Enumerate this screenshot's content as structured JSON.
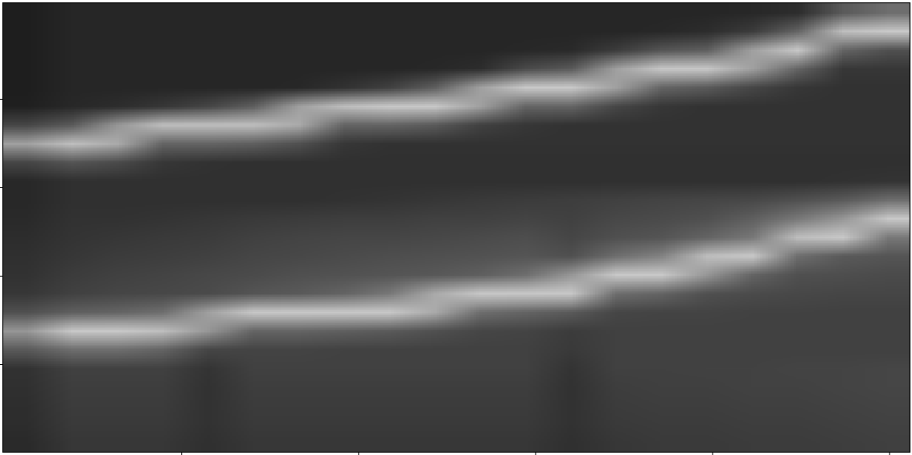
{
  "chart_data": {
    "type": "heatmap",
    "xlim": [
      -2,
      1023
    ],
    "ylim": [
      499,
      -9
    ],
    "xticks": [
      200,
      400,
      600,
      800,
      1000
    ],
    "yticks": [
      100,
      200,
      300,
      400
    ],
    "tick_labels": false,
    "color": "gray",
    "zlim": [
      0,
      255
    ],
    "cells": [
      [
        30,
        38,
        38,
        38,
        38,
        38,
        38,
        38,
        38,
        38,
        38,
        38,
        38,
        38,
        38,
        38,
        40,
        45,
        90,
        110
      ],
      [
        30,
        38,
        38,
        38,
        38,
        38,
        38,
        38,
        38,
        38,
        38,
        38,
        38,
        38,
        40,
        45,
        60,
        100,
        190,
        200
      ],
      [
        30,
        38,
        38,
        38,
        38,
        38,
        38,
        38,
        38,
        38,
        38,
        40,
        42,
        60,
        85,
        95,
        160,
        200,
        100,
        80
      ],
      [
        30,
        38,
        38,
        38,
        38,
        38,
        38,
        38,
        38,
        40,
        45,
        75,
        90,
        160,
        200,
        200,
        160,
        100,
        55,
        55
      ],
      [
        30,
        38,
        38,
        38,
        38,
        38,
        40,
        50,
        65,
        95,
        160,
        200,
        200,
        160,
        100,
        90,
        70,
        55,
        50,
        50
      ],
      [
        32,
        40,
        45,
        55,
        70,
        95,
        160,
        190,
        200,
        200,
        160,
        100,
        100,
        70,
        55,
        50,
        50,
        50,
        50,
        50
      ],
      [
        70,
        90,
        150,
        190,
        190,
        190,
        170,
        100,
        100,
        90,
        65,
        55,
        50,
        50,
        50,
        50,
        50,
        50,
        50,
        50
      ],
      [
        160,
        190,
        170,
        100,
        100,
        95,
        80,
        55,
        50,
        50,
        50,
        50,
        50,
        50,
        50,
        50,
        50,
        50,
        50,
        50
      ],
      [
        70,
        85,
        75,
        55,
        50,
        48,
        48,
        48,
        48,
        48,
        48,
        48,
        48,
        48,
        48,
        48,
        48,
        48,
        48,
        48
      ],
      [
        40,
        48,
        48,
        48,
        48,
        48,
        48,
        48,
        48,
        48,
        48,
        48,
        48,
        48,
        48,
        48,
        48,
        48,
        50,
        52
      ],
      [
        40,
        48,
        48,
        48,
        48,
        48,
        48,
        50,
        52,
        55,
        58,
        60,
        62,
        65,
        68,
        70,
        72,
        80,
        90,
        110
      ],
      [
        42,
        50,
        50,
        52,
        55,
        58,
        60,
        62,
        62,
        65,
        65,
        68,
        65,
        72,
        75,
        80,
        95,
        120,
        150,
        200
      ],
      [
        45,
        52,
        55,
        58,
        60,
        65,
        68,
        70,
        70,
        72,
        75,
        78,
        70,
        80,
        85,
        100,
        120,
        190,
        200,
        120
      ],
      [
        48,
        55,
        60,
        62,
        65,
        70,
        72,
        75,
        78,
        80,
        82,
        85,
        80,
        110,
        130,
        190,
        200,
        110,
        90,
        85
      ],
      [
        50,
        60,
        65,
        68,
        72,
        75,
        80,
        82,
        85,
        88,
        95,
        110,
        150,
        200,
        200,
        150,
        100,
        80,
        78,
        75
      ],
      [
        55,
        65,
        70,
        72,
        75,
        85,
        90,
        100,
        120,
        170,
        200,
        200,
        200,
        110,
        100,
        80,
        75,
        72,
        70,
        70
      ],
      [
        80,
        95,
        100,
        110,
        160,
        200,
        200,
        200,
        200,
        170,
        110,
        100,
        90,
        70,
        68,
        68,
        66,
        66,
        65,
        65
      ],
      [
        150,
        200,
        200,
        190,
        150,
        100,
        100,
        95,
        90,
        80,
        70,
        68,
        60,
        65,
        65,
        65,
        65,
        65,
        65,
        65
      ],
      [
        90,
        110,
        110,
        100,
        70,
        68,
        68,
        66,
        66,
        65,
        65,
        65,
        58,
        65,
        65,
        65,
        65,
        65,
        65,
        65
      ],
      [
        50,
        65,
        65,
        65,
        52,
        65,
        65,
        65,
        65,
        65,
        65,
        65,
        52,
        65,
        65,
        66,
        66,
        68,
        68,
        70
      ],
      [
        48,
        62,
        62,
        62,
        50,
        62,
        62,
        62,
        62,
        62,
        62,
        62,
        50,
        62,
        64,
        64,
        66,
        66,
        68,
        70
      ],
      [
        46,
        60,
        60,
        60,
        50,
        60,
        60,
        60,
        60,
        60,
        60,
        60,
        50,
        60,
        62,
        62,
        64,
        64,
        66,
        68
      ],
      [
        45,
        58,
        58,
        58,
        50,
        58,
        58,
        58,
        58,
        58,
        58,
        58,
        50,
        58,
        60,
        60,
        62,
        62,
        64,
        66
      ],
      [
        42,
        55,
        55,
        55,
        48,
        55,
        55,
        55,
        55,
        55,
        55,
        55,
        48,
        55,
        58,
        58,
        60,
        60,
        62,
        64
      ]
    ]
  }
}
